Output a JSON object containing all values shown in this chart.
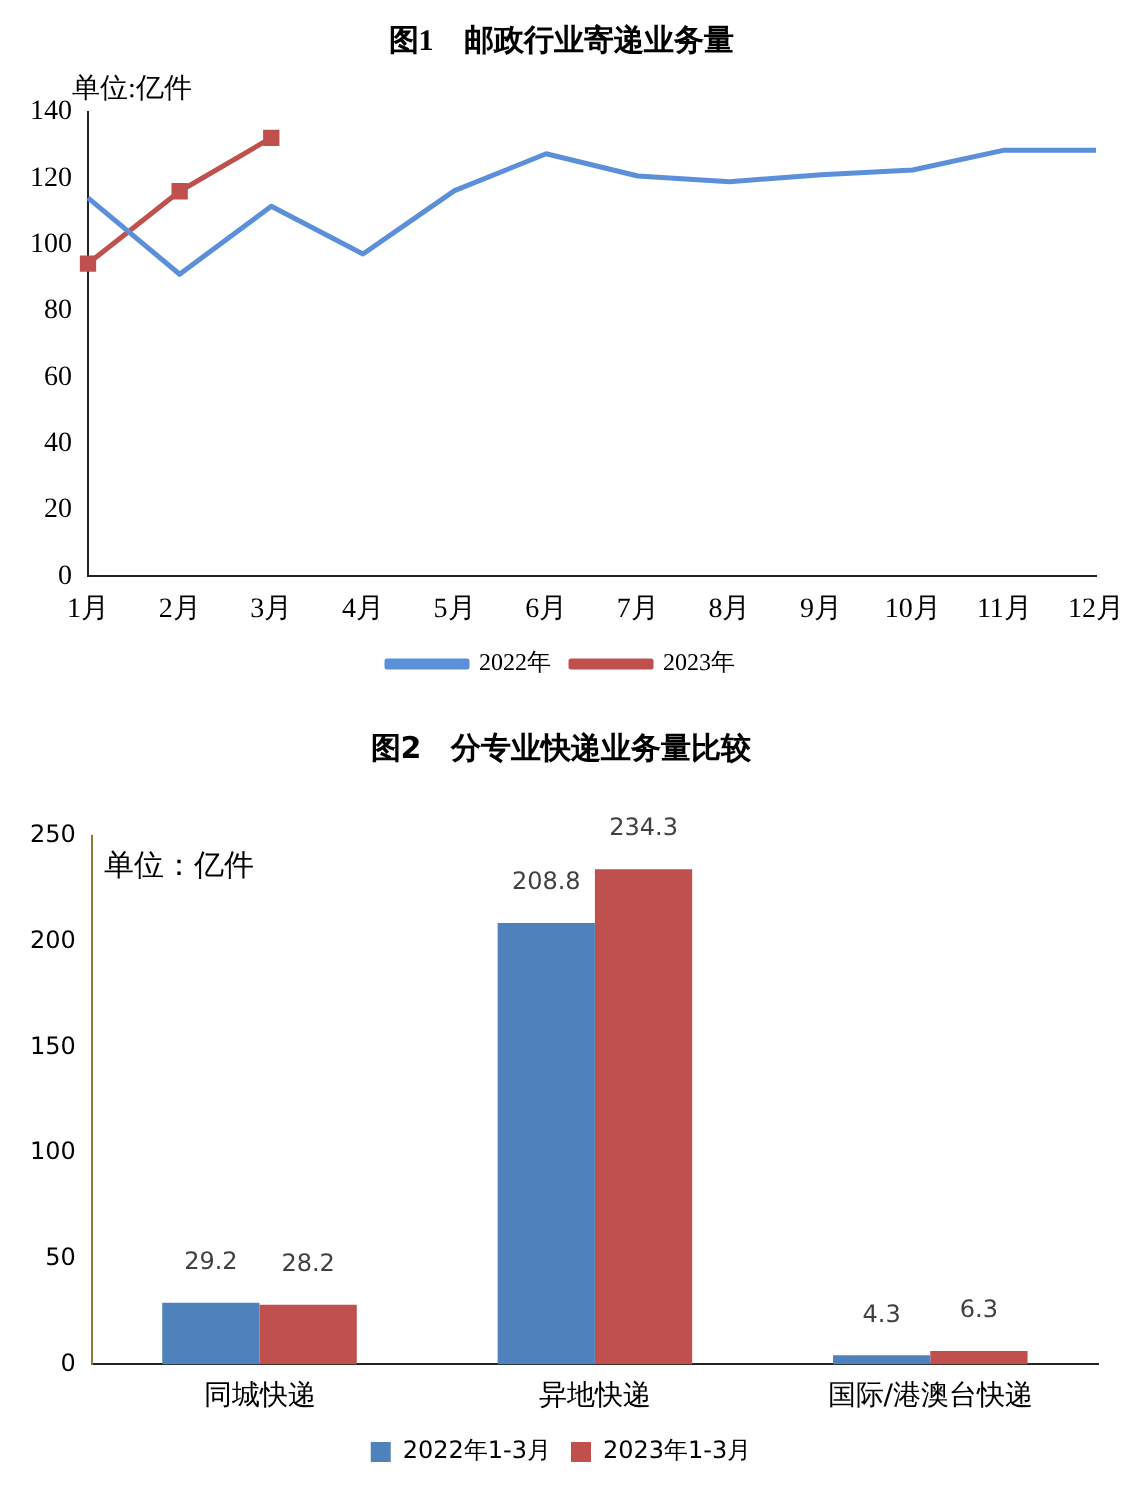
{
  "chart_data": [
    {
      "type": "line",
      "title": "图1　邮政行业寄递业务量",
      "annotations": [
        "单位:亿件"
      ],
      "categories": [
        "1月",
        "2月",
        "3月",
        "4月",
        "5月",
        "6月",
        "7月",
        "8月",
        "9月",
        "10月",
        "11月",
        "12月"
      ],
      "series": [
        {
          "name": "2022年",
          "color": "#5b8fd9",
          "marker": "none",
          "values": [
            114.1,
            91.1,
            111.6,
            97.2,
            116.3,
            127.4,
            120.7,
            119.0,
            121.1,
            122.5,
            128.5,
            128.5
          ]
        },
        {
          "name": "2023年",
          "color": "#c0504d",
          "marker": "square",
          "values": [
            94.3,
            116.1,
            132.2,
            null,
            null,
            null,
            null,
            null,
            null,
            null,
            null,
            null
          ]
        }
      ],
      "ylim": [
        0,
        140
      ],
      "yticks": [
        0,
        20,
        40,
        60,
        80,
        100,
        120,
        140
      ],
      "grid": false,
      "legend": "bottom"
    },
    {
      "type": "bar",
      "title": "图2　分专业快递业务量比较",
      "annotations": [
        "单位：亿件"
      ],
      "categories": [
        "同城快递",
        "异地快递",
        "国际/港澳台快递"
      ],
      "series": [
        {
          "name": "2022年1-3月",
          "color": "#4f81bd",
          "values": [
            29.2,
            208.8,
            4.3
          ]
        },
        {
          "name": "2023年1-3月",
          "color": "#c0504d",
          "values": [
            28.2,
            234.3,
            6.3
          ]
        }
      ],
      "ylim": [
        0,
        250
      ],
      "yticks": [
        0,
        50,
        100,
        150,
        200,
        250
      ],
      "grid": false,
      "legend": "bottom",
      "data_labels": true
    }
  ]
}
